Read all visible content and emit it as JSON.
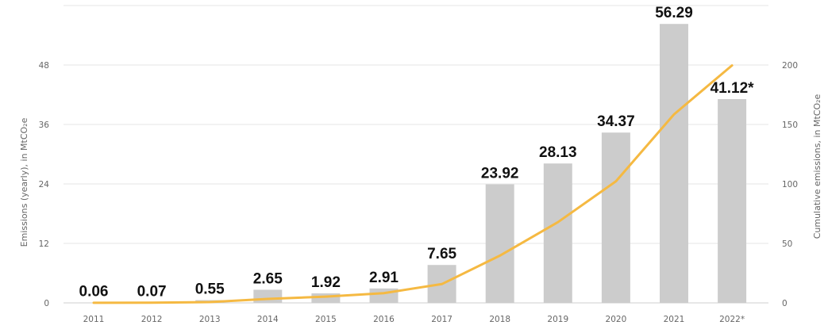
{
  "chart_data": {
    "type": "bar",
    "categories": [
      "2011",
      "2012",
      "2013",
      "2014",
      "2015",
      "2016",
      "2017",
      "2018",
      "2019",
      "2020",
      "2021",
      "2022*"
    ],
    "series": [
      {
        "values": [
          0.06,
          0.07,
          0.55,
          2.65,
          1.92,
          2.91,
          7.65,
          23.92,
          28.13,
          34.37,
          56.29,
          41.12
        ],
        "labels": [
          "0.06",
          "0.07",
          "0.55",
          "2.65",
          "1.92",
          "2.91",
          "7.65",
          "23.92",
          "28.13",
          "34.37",
          "56.29",
          "41.12*"
        ],
        "color": "#cccccc",
        "axis": "left"
      },
      {
        "type": "line",
        "values": [
          0.06,
          0.13,
          0.68,
          3.33,
          5.25,
          8.16,
          15.81,
          39.73,
          67.86,
          102.23,
          158.52,
          199.64
        ],
        "color": "#f5b942",
        "axis": "right"
      }
    ],
    "ylabel": "Emissions (yearly), in MtCO₂e",
    "y2label": "Cumulative emissions, in MtCO₂e",
    "ylim": [
      0,
      60
    ],
    "yticks": [
      "0",
      "12",
      "24",
      "36",
      "48"
    ],
    "y2lim": [
      0,
      250
    ],
    "y2ticks": [
      "0",
      "50",
      "100",
      "150",
      "200"
    ],
    "grid": true
  }
}
